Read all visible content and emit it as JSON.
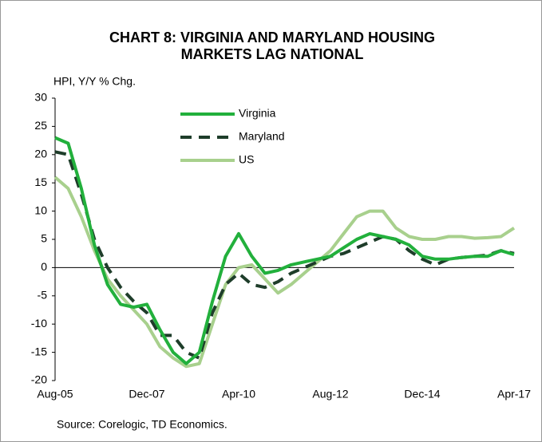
{
  "chart_data": {
    "type": "line",
    "title": "CHART 8: VIRGINIA AND MARYLAND HOUSING MARKETS LAG NATIONAL",
    "y_label": "HPI, Y/Y % Chg.",
    "source": "Source: Corelogic, TD Economics.",
    "categories": [
      "Aug-05",
      null,
      null,
      null,
      null,
      null,
      null,
      "Dec-07",
      null,
      null,
      null,
      null,
      null,
      null,
      "Apr-10",
      null,
      null,
      null,
      null,
      null,
      null,
      "Aug-12",
      null,
      null,
      null,
      null,
      null,
      null,
      "Dec-14",
      null,
      null,
      null,
      null,
      null,
      null,
      "Apr-17"
    ],
    "series": [
      {
        "name": "Virginia",
        "color": "#22b03c",
        "dash": false,
        "values": [
          23,
          22,
          14,
          4,
          -3,
          -6.5,
          -7,
          -6.5,
          -11,
          -15,
          -17,
          -15,
          -6,
          2,
          6,
          2,
          -1,
          -0.5,
          0.5,
          1,
          1.5,
          2,
          3.5,
          5,
          6,
          5.5,
          5,
          4,
          2,
          1.5,
          1.5,
          1.8,
          2,
          2,
          3,
          2.3
        ]
      },
      {
        "name": "Maryland",
        "color": "#1e3d2a",
        "dash": true,
        "values": [
          20.5,
          20,
          13,
          5,
          0,
          -3.5,
          -6,
          -8,
          -12,
          -12,
          -15,
          -16,
          -8,
          -3,
          -1,
          -3,
          -3.5,
          -2.5,
          -1,
          0,
          1,
          2,
          2.5,
          3.5,
          4.5,
          5.5,
          5,
          3,
          1.5,
          0.5,
          1.5,
          1.8,
          2,
          2.2,
          3,
          2.5
        ]
      },
      {
        "name": "US",
        "color": "#a8d08d",
        "dash": false,
        "values": [
          16,
          14,
          9,
          3,
          -2,
          -5,
          -7.5,
          -10,
          -14,
          -16,
          -17.5,
          -17,
          -10,
          -3,
          0,
          0.5,
          -2,
          -4.5,
          -3,
          -1,
          1,
          3,
          6,
          9,
          10,
          10,
          7,
          5.5,
          5,
          5,
          5.5,
          5.5,
          5.2,
          5.3,
          5.5,
          7
        ]
      }
    ],
    "ylim": [
      -20,
      30
    ],
    "yticks": [
      -20,
      -15,
      -10,
      -5,
      0,
      5,
      10,
      15,
      20,
      25,
      30
    ]
  }
}
